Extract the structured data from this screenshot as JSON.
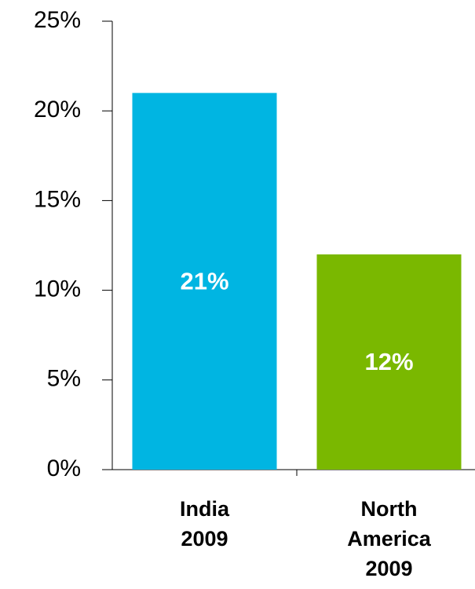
{
  "chart_data": {
    "type": "bar",
    "categories": [
      "India 2009",
      "North America 2009"
    ],
    "values": [
      21,
      12
    ],
    "value_labels": [
      "21%",
      "12%"
    ],
    "colors": [
      "#00b5e2",
      "#7ab800"
    ],
    "ylim": [
      0,
      25
    ],
    "yticks": [
      {
        "value": 0,
        "label": "0%"
      },
      {
        "value": 5,
        "label": "5%"
      },
      {
        "value": 10,
        "label": "10%"
      },
      {
        "value": 15,
        "label": "15%"
      },
      {
        "value": 20,
        "label": "20%"
      },
      {
        "value": 25,
        "label": "25%"
      }
    ],
    "grid": false
  }
}
